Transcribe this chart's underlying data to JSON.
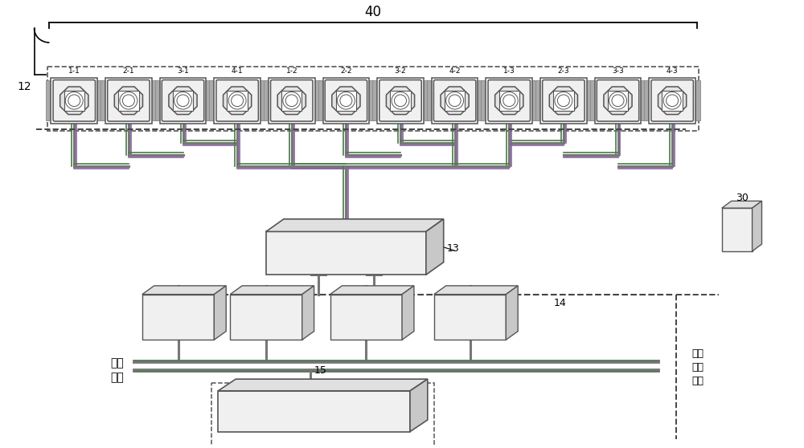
{
  "bg_color": "#ffffff",
  "line_color": "#666666",
  "green_line": "#4a7c4a",
  "purple_line": "#8860a0",
  "dashed_color": "#444444",
  "coil_labels": [
    "1-1",
    "2-1",
    "3-1",
    "4-1",
    "1-2",
    "2-2",
    "3-2",
    "4-2",
    "1-3",
    "2-3",
    "3-3",
    "4-3"
  ],
  "n_coils": 12,
  "figw": 10.0,
  "figh": 5.58,
  "dpi": 100
}
